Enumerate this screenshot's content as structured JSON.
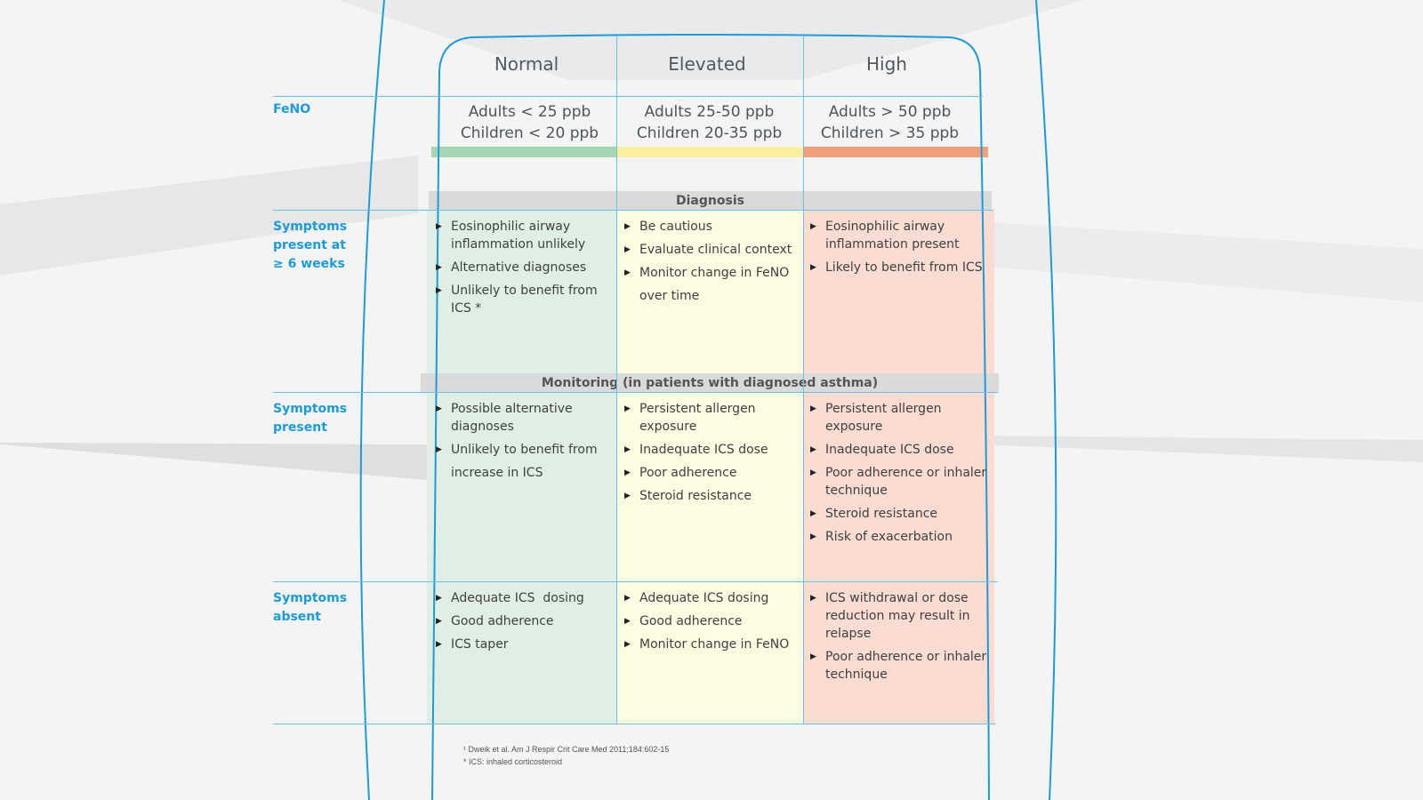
{
  "colors": {
    "accent": "#1e9bd7",
    "normal_bar": "#a6d5b4",
    "elevated_bar": "#fcf0a0",
    "high_bar": "#f0a07c",
    "normal_cell": "#e0efe5",
    "elevated_cell": "#fefbe3",
    "high_cell": "#fadcd2",
    "section_band": "#d8dadc"
  },
  "columns": [
    {
      "header": "Normal",
      "range_line1": "Adults < 25 ppb",
      "range_line2": "Children < 20 ppb"
    },
    {
      "header": "Elevated",
      "range_line1": "Adults 25-50 ppb",
      "range_line2": "Children 20-35 ppb"
    },
    {
      "header": "High",
      "range_line1": "Adults > 50 ppb",
      "range_line2": "Children > 35 ppb"
    }
  ],
  "row_labels": {
    "feno": "FeNO",
    "symptoms_6wk": [
      "Symptoms",
      "present at",
      "≥ 6 weeks"
    ],
    "symptoms_present": [
      "Symptoms",
      "present"
    ],
    "symptoms_absent": [
      "Symptoms",
      "absent"
    ]
  },
  "sections": {
    "diagnosis": "Diagnosis",
    "monitoring": "Monitoring (in patients with diagnosed asthma)"
  },
  "diagnosis": {
    "normal": [
      "Eosinophilic airway inflammation unlikely",
      "Alternative diagnoses",
      "Unlikely to benefit from ICS *"
    ],
    "elevated": [
      "Be cautious",
      "Evaluate clinical context",
      "Monitor change in FeNO over time"
    ],
    "high": [
      "Eosinophilic airway inflammation present",
      "Likely to benefit from ICS"
    ]
  },
  "monitoring_present": {
    "normal": [
      "Possible alternative diagnoses",
      "Unlikely to benefit from increase in ICS"
    ],
    "elevated": [
      "Persistent allergen exposure",
      "Inadequate ICS dose",
      "Poor adherence",
      "Steroid resistance"
    ],
    "high": [
      "Persistent allergen exposure",
      "Inadequate ICS dose",
      "Poor adherence or inhaler technique",
      "Steroid resistance",
      "Risk of exacerbation"
    ]
  },
  "monitoring_absent": {
    "normal": [
      "Adequate ICS  dosing",
      "Good adherence",
      "ICS taper"
    ],
    "elevated": [
      "Adequate ICS dosing",
      "Good adherence",
      "Monitor change in FeNO"
    ],
    "high": [
      "ICS withdrawal or dose reduction may result in relapse",
      "Poor adherence or inhaler technique"
    ]
  },
  "footnotes": {
    "ref": "¹ Dweik et al. Am J Respir Crit Care Med 2011;184:602-15",
    "ics": "* ICS: inhaled corticosteroid"
  }
}
